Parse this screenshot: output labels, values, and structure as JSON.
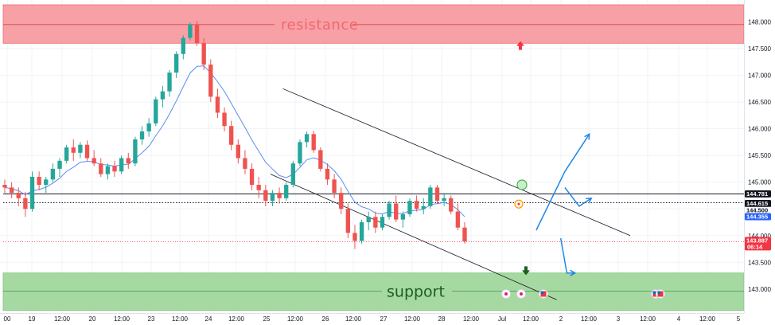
{
  "chart_data": {
    "type": "candlestick",
    "title": "",
    "y_axis": {
      "range": [
        142.55,
        148.35
      ],
      "ticks": [
        "143.000",
        "143.500",
        "144.000",
        "144.500",
        "145.000",
        "145.500",
        "146.000",
        "146.500",
        "147.000",
        "147.500",
        "148.000"
      ]
    },
    "x_axis": {
      "ticks": [
        "00",
        "19",
        "12:00",
        "20",
        "12:00",
        "23",
        "12:00",
        "24",
        "12:00",
        "25",
        "12:00",
        "26",
        "12:00",
        "27",
        "12:00",
        "28",
        "12:00",
        "Jul",
        "12:00",
        "2",
        "12:00",
        "3",
        "12:00",
        "4",
        "12:00",
        "5"
      ]
    },
    "zones": {
      "resistance": {
        "label": "resistance",
        "from": 147.6,
        "to": 148.32,
        "mid": 147.95,
        "color": "#f7a1a6"
      },
      "support": {
        "label": "support",
        "from": 142.6,
        "to": 143.3,
        "mid": 142.96,
        "color": "#a6d9a1"
      }
    },
    "horizontal_lines": [
      {
        "name": "level-line",
        "value": 144.781,
        "style": "solid"
      },
      {
        "name": "prev-close-line",
        "value": 144.615,
        "style": "dotted"
      },
      {
        "name": "price-line",
        "value": 143.887,
        "style": "dotted-red"
      }
    ],
    "price_labels": [
      {
        "text": "144.781",
        "value": 144.781,
        "bg": "#131722",
        "fg": "#ffffff"
      },
      {
        "text": "144.615",
        "value": 144.615,
        "bg": "#131722",
        "fg": "#ffffff"
      },
      {
        "text": "144.500",
        "value": 144.5,
        "bg": "#ffffff",
        "fg": "#131722"
      },
      {
        "text": "144.355",
        "value": 144.355,
        "bg": "#2962ff",
        "fg": "#ffffff"
      },
      {
        "text": "143.887",
        "sub": "06:14",
        "value": 143.887,
        "bg": "#f23645",
        "fg": "#ffffff"
      }
    ],
    "channel": {
      "upper": [
        [
          13.6,
          146.75
        ],
        [
          30.6,
          144.0
        ]
      ],
      "lower": [
        [
          13.0,
          145.15
        ],
        [
          27.0,
          142.8
        ]
      ]
    },
    "forecast_paths": [
      {
        "name": "bullish-path",
        "points": [
          [
            26.0,
            144.1
          ],
          [
            27.4,
            145.2
          ],
          [
            28.6,
            145.9
          ]
        ]
      },
      {
        "name": "retest-path",
        "points": [
          [
            27.4,
            144.9
          ],
          [
            28.1,
            144.55
          ],
          [
            28.7,
            144.7
          ]
        ]
      },
      {
        "name": "bearish-path",
        "points": [
          [
            27.2,
            143.95
          ],
          [
            27.5,
            143.3
          ],
          [
            27.9,
            143.3
          ]
        ]
      }
    ],
    "ema": {
      "color": "#5b8def"
    },
    "candle_colors": {
      "up": "#26a69a",
      "down": "#ef5350"
    },
    "ohlc": [
      {
        "o": 144.95,
        "h": 145.05,
        "l": 144.8,
        "c": 144.9
      },
      {
        "o": 144.9,
        "h": 145.0,
        "l": 144.7,
        "c": 144.8
      },
      {
        "o": 144.8,
        "h": 144.9,
        "l": 144.55,
        "c": 144.7
      },
      {
        "o": 144.7,
        "h": 144.82,
        "l": 144.35,
        "c": 144.5
      },
      {
        "o": 144.5,
        "h": 145.2,
        "l": 144.45,
        "c": 145.1
      },
      {
        "o": 145.1,
        "h": 145.2,
        "l": 144.85,
        "c": 144.95
      },
      {
        "o": 144.95,
        "h": 145.1,
        "l": 144.8,
        "c": 145.05
      },
      {
        "o": 145.05,
        "h": 145.35,
        "l": 145.0,
        "c": 145.25
      },
      {
        "o": 145.25,
        "h": 145.45,
        "l": 145.1,
        "c": 145.4
      },
      {
        "o": 145.4,
        "h": 145.7,
        "l": 145.35,
        "c": 145.65
      },
      {
        "o": 145.65,
        "h": 145.8,
        "l": 145.4,
        "c": 145.55
      },
      {
        "o": 145.55,
        "h": 145.75,
        "l": 145.45,
        "c": 145.7
      },
      {
        "o": 145.7,
        "h": 145.78,
        "l": 145.4,
        "c": 145.45
      },
      {
        "o": 145.45,
        "h": 145.6,
        "l": 145.3,
        "c": 145.35
      },
      {
        "o": 145.35,
        "h": 145.45,
        "l": 145.1,
        "c": 145.15
      },
      {
        "o": 145.15,
        "h": 145.35,
        "l": 145.05,
        "c": 145.3
      },
      {
        "o": 145.3,
        "h": 145.4,
        "l": 145.1,
        "c": 145.2
      },
      {
        "o": 145.2,
        "h": 145.5,
        "l": 145.15,
        "c": 145.45
      },
      {
        "o": 145.45,
        "h": 145.55,
        "l": 145.25,
        "c": 145.35
      },
      {
        "o": 145.35,
        "h": 145.85,
        "l": 145.3,
        "c": 145.8
      },
      {
        "o": 145.8,
        "h": 146.05,
        "l": 145.7,
        "c": 145.95
      },
      {
        "o": 145.95,
        "h": 146.2,
        "l": 145.85,
        "c": 146.1
      },
      {
        "o": 146.1,
        "h": 146.6,
        "l": 146.05,
        "c": 146.55
      },
      {
        "o": 146.55,
        "h": 146.8,
        "l": 146.4,
        "c": 146.7
      },
      {
        "o": 146.7,
        "h": 147.1,
        "l": 146.6,
        "c": 147.05
      },
      {
        "o": 147.05,
        "h": 147.45,
        "l": 146.95,
        "c": 147.4
      },
      {
        "o": 147.4,
        "h": 147.75,
        "l": 147.3,
        "c": 147.7
      },
      {
        "o": 147.7,
        "h": 147.99,
        "l": 147.65,
        "c": 147.95
      },
      {
        "o": 147.95,
        "h": 148.02,
        "l": 147.55,
        "c": 147.6
      },
      {
        "o": 147.6,
        "h": 147.7,
        "l": 147.1,
        "c": 147.2
      },
      {
        "o": 147.2,
        "h": 147.3,
        "l": 146.5,
        "c": 146.6
      },
      {
        "o": 146.6,
        "h": 146.75,
        "l": 146.2,
        "c": 146.3
      },
      {
        "o": 146.3,
        "h": 146.4,
        "l": 145.95,
        "c": 146.05
      },
      {
        "o": 146.05,
        "h": 146.15,
        "l": 145.6,
        "c": 145.7
      },
      {
        "o": 145.7,
        "h": 145.8,
        "l": 145.35,
        "c": 145.45
      },
      {
        "o": 145.45,
        "h": 145.6,
        "l": 145.15,
        "c": 145.25
      },
      {
        "o": 145.25,
        "h": 145.35,
        "l": 144.85,
        "c": 144.95
      },
      {
        "o": 144.95,
        "h": 145.1,
        "l": 144.7,
        "c": 144.85
      },
      {
        "o": 144.85,
        "h": 144.95,
        "l": 144.55,
        "c": 144.65
      },
      {
        "o": 144.65,
        "h": 144.85,
        "l": 144.55,
        "c": 144.8
      },
      {
        "o": 144.8,
        "h": 144.9,
        "l": 144.6,
        "c": 144.7
      },
      {
        "o": 144.7,
        "h": 145.0,
        "l": 144.65,
        "c": 144.95
      },
      {
        "o": 144.95,
        "h": 145.4,
        "l": 144.9,
        "c": 145.35
      },
      {
        "o": 145.35,
        "h": 145.8,
        "l": 145.3,
        "c": 145.75
      },
      {
        "o": 145.75,
        "h": 145.95,
        "l": 145.65,
        "c": 145.9
      },
      {
        "o": 145.9,
        "h": 145.96,
        "l": 145.55,
        "c": 145.6
      },
      {
        "o": 145.6,
        "h": 145.65,
        "l": 145.2,
        "c": 145.25
      },
      {
        "o": 145.25,
        "h": 145.35,
        "l": 144.95,
        "c": 145.05
      },
      {
        "o": 145.05,
        "h": 145.15,
        "l": 144.7,
        "c": 144.8
      },
      {
        "o": 144.8,
        "h": 144.9,
        "l": 144.4,
        "c": 144.5
      },
      {
        "o": 144.5,
        "h": 144.6,
        "l": 143.95,
        "c": 144.05
      },
      {
        "o": 144.05,
        "h": 144.2,
        "l": 143.75,
        "c": 143.9
      },
      {
        "o": 143.9,
        "h": 144.3,
        "l": 143.85,
        "c": 144.25
      },
      {
        "o": 144.25,
        "h": 144.45,
        "l": 144.1,
        "c": 144.35
      },
      {
        "o": 144.35,
        "h": 144.45,
        "l": 144.05,
        "c": 144.15
      },
      {
        "o": 144.15,
        "h": 144.4,
        "l": 144.1,
        "c": 144.35
      },
      {
        "o": 144.35,
        "h": 144.65,
        "l": 144.3,
        "c": 144.6
      },
      {
        "o": 144.6,
        "h": 144.75,
        "l": 144.25,
        "c": 144.3
      },
      {
        "o": 144.3,
        "h": 144.45,
        "l": 144.15,
        "c": 144.4
      },
      {
        "o": 144.4,
        "h": 144.7,
        "l": 144.35,
        "c": 144.65
      },
      {
        "o": 144.65,
        "h": 144.75,
        "l": 144.45,
        "c": 144.5
      },
      {
        "o": 144.5,
        "h": 144.7,
        "l": 144.4,
        "c": 144.55
      },
      {
        "o": 144.55,
        "h": 144.95,
        "l": 144.5,
        "c": 144.9
      },
      {
        "o": 144.9,
        "h": 144.95,
        "l": 144.6,
        "c": 144.65
      },
      {
        "o": 144.65,
        "h": 144.8,
        "l": 144.55,
        "c": 144.7
      },
      {
        "o": 144.7,
        "h": 144.75,
        "l": 144.4,
        "c": 144.45
      },
      {
        "o": 144.45,
        "h": 144.6,
        "l": 144.1,
        "c": 144.15
      },
      {
        "o": 144.15,
        "h": 144.25,
        "l": 143.85,
        "c": 143.89
      }
    ]
  },
  "markers": {
    "up_arrow": {
      "color": "#f23645",
      "value": 147.55
    },
    "down_arrow": {
      "color": "#1b5e20",
      "value": 143.35
    },
    "circle_green": {
      "color": "#4caf50",
      "value": 144.95
    },
    "circle_orange": {
      "color": "#ff9800",
      "value": 144.59
    }
  },
  "events": [
    {
      "icon": "event-dot-icon",
      "color": "#e91e63"
    },
    {
      "icon": "event-dot-icon",
      "color": "#e91e63"
    },
    {
      "icon": "us-flag-icon",
      "color": "#1565c0"
    },
    {
      "icon": "us-flag-icon",
      "color": "#1565c0"
    },
    {
      "icon": "us-flag-icon",
      "color": "#1565c0"
    }
  ]
}
